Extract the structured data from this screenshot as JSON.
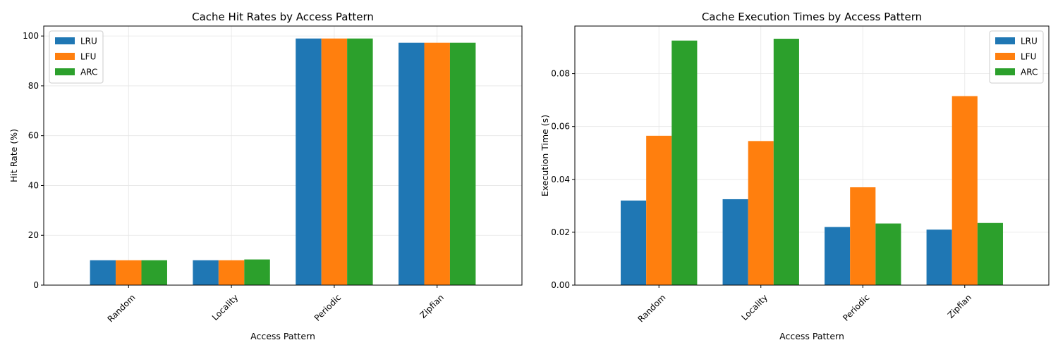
{
  "chart_data": [
    {
      "type": "bar",
      "title": "Cache Hit Rates by Access Pattern",
      "xlabel": "Access Pattern",
      "ylabel": "Hit Rate (%)",
      "categories": [
        "Random",
        "Locality",
        "Periodic",
        "Zipfian"
      ],
      "ylim": [
        0,
        104
      ],
      "yticks": [
        0,
        20,
        40,
        60,
        80,
        100
      ],
      "ytick_labels": [
        "0",
        "20",
        "40",
        "60",
        "80",
        "100"
      ],
      "grid": true,
      "legend_position": "top-left",
      "series": [
        {
          "name": "LRU",
          "color": "#1f77b4",
          "values": [
            10.0,
            10.0,
            99.0,
            97.3
          ]
        },
        {
          "name": "LFU",
          "color": "#ff7f0e",
          "values": [
            10.0,
            10.0,
            99.0,
            97.3
          ]
        },
        {
          "name": "ARC",
          "color": "#2ca02c",
          "values": [
            10.0,
            10.3,
            99.0,
            97.3
          ]
        }
      ]
    },
    {
      "type": "bar",
      "title": "Cache Execution Times by Access Pattern",
      "xlabel": "Access Pattern",
      "ylabel": "Execution Time (s)",
      "categories": [
        "Random",
        "Locality",
        "Periodic",
        "Zipfian"
      ],
      "ylim": [
        0,
        0.098
      ],
      "yticks": [
        0,
        0.02,
        0.04,
        0.06,
        0.08
      ],
      "ytick_labels": [
        "0.00",
        "0.02",
        "0.04",
        "0.06",
        "0.08"
      ],
      "grid": true,
      "legend_position": "top-right",
      "series": [
        {
          "name": "LRU",
          "color": "#1f77b4",
          "values": [
            0.032,
            0.0325,
            0.022,
            0.021
          ]
        },
        {
          "name": "LFU",
          "color": "#ff7f0e",
          "values": [
            0.0565,
            0.0545,
            0.037,
            0.0715
          ]
        },
        {
          "name": "ARC",
          "color": "#2ca02c",
          "values": [
            0.0925,
            0.0932,
            0.0233,
            0.0235
          ]
        }
      ]
    }
  ]
}
